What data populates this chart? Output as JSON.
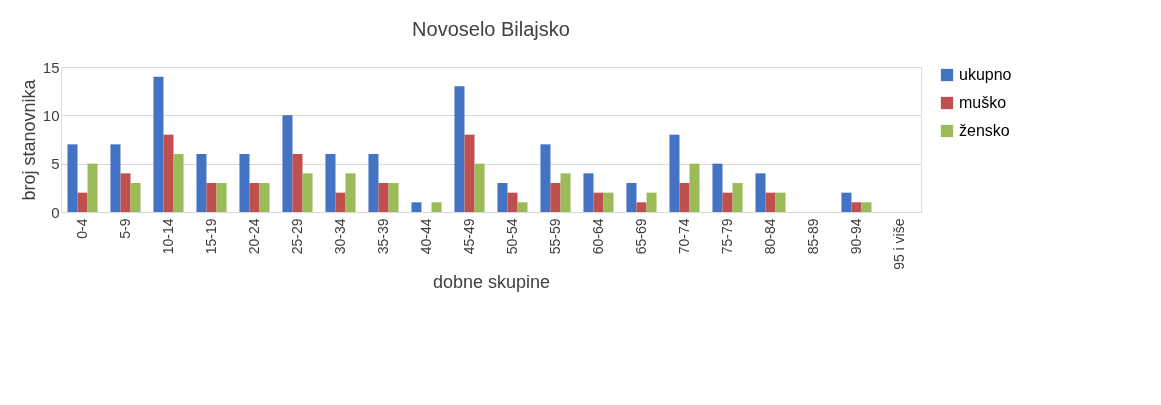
{
  "chart_data": {
    "type": "bar",
    "title": "Novoselo Bilajsko",
    "xlabel": "dobne skupine",
    "ylabel": "broj stanovnika",
    "categories": [
      "0-4",
      "5-9",
      "10-14",
      "15-19",
      "20-24",
      "25-29",
      "30-34",
      "35-39",
      "40-44",
      "45-49",
      "50-54",
      "55-59",
      "60-64",
      "65-69",
      "70-74",
      "75-79",
      "80-84",
      "85-89",
      "90-94",
      "95 i više"
    ],
    "series": [
      {
        "name": "ukupno",
        "color": "#4472c4",
        "values": [
          7,
          7,
          14,
          6,
          6,
          10,
          6,
          6,
          1,
          13,
          3,
          7,
          4,
          3,
          8,
          5,
          4,
          0,
          2,
          0
        ]
      },
      {
        "name": "muško",
        "color": "#c0504d",
        "values": [
          2,
          4,
          8,
          3,
          3,
          6,
          2,
          3,
          0,
          8,
          2,
          3,
          2,
          1,
          3,
          2,
          2,
          0,
          1,
          0
        ]
      },
      {
        "name": "žensko",
        "color": "#9bbb59",
        "values": [
          5,
          3,
          6,
          3,
          3,
          4,
          4,
          3,
          1,
          5,
          1,
          4,
          2,
          2,
          5,
          3,
          2,
          0,
          1,
          0
        ]
      }
    ],
    "ylim": [
      0,
      15
    ],
    "yticks": [
      0,
      5,
      10,
      15
    ],
    "grid": "y",
    "legend": "right"
  }
}
